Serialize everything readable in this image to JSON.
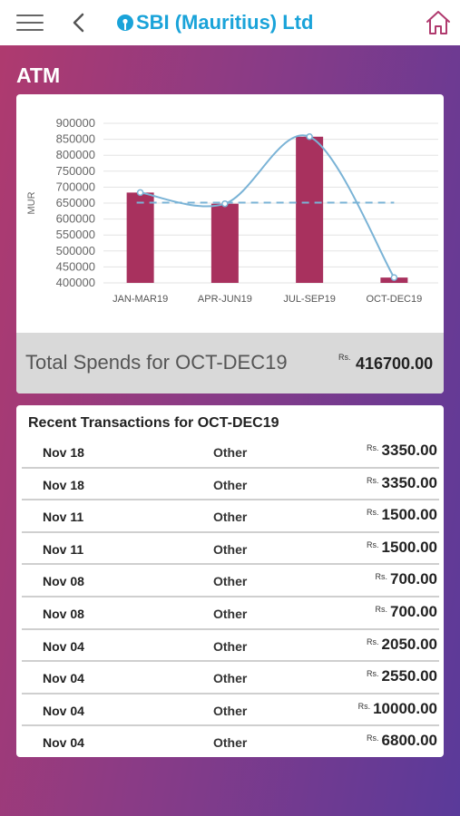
{
  "header": {
    "brand_sbi": "SBI",
    "brand_rest": "(Mauritius) Ltd",
    "brand_color": "#1aa3d9"
  },
  "section": {
    "title": "ATM"
  },
  "chart_data": {
    "type": "bar",
    "categories": [
      "JAN-MAR19",
      "APR-JUN19",
      "JUL-SEP19",
      "OCT-DEC19"
    ],
    "values": [
      683000,
      648000,
      858000,
      416700
    ],
    "ylabel": "MUR",
    "ylim": [
      400000,
      900000
    ],
    "yticks": [
      900000,
      850000,
      800000,
      750000,
      700000,
      650000,
      600000,
      550000,
      500000,
      450000,
      400000
    ],
    "average": 651500,
    "bar_color": "#a8315e",
    "line_color": "#7ab3d6",
    "average_line_style": "dashed",
    "grid": true
  },
  "total": {
    "label": "Total Spends for OCT-DEC19",
    "currency": "Rs.",
    "value": "416700.00"
  },
  "transactions": {
    "title": "Recent Transactions for OCT-DEC19",
    "rows": [
      {
        "date": "Nov 18",
        "type": "Other",
        "currency": "Rs.",
        "amount": "3350.00"
      },
      {
        "date": "Nov 18",
        "type": "Other",
        "currency": "Rs.",
        "amount": "3350.00"
      },
      {
        "date": "Nov 11",
        "type": "Other",
        "currency": "Rs.",
        "amount": "1500.00"
      },
      {
        "date": "Nov 11",
        "type": "Other",
        "currency": "Rs.",
        "amount": "1500.00"
      },
      {
        "date": "Nov 08",
        "type": "Other",
        "currency": "Rs.",
        "amount": "700.00"
      },
      {
        "date": "Nov 08",
        "type": "Other",
        "currency": "Rs.",
        "amount": "700.00"
      },
      {
        "date": "Nov 04",
        "type": "Other",
        "currency": "Rs.",
        "amount": "2050.00"
      },
      {
        "date": "Nov 04",
        "type": "Other",
        "currency": "Rs.",
        "amount": "2550.00"
      },
      {
        "date": "Nov 04",
        "type": "Other",
        "currency": "Rs.",
        "amount": "10000.00"
      },
      {
        "date": "Nov 04",
        "type": "Other",
        "currency": "Rs.",
        "amount": "6800.00"
      }
    ]
  }
}
